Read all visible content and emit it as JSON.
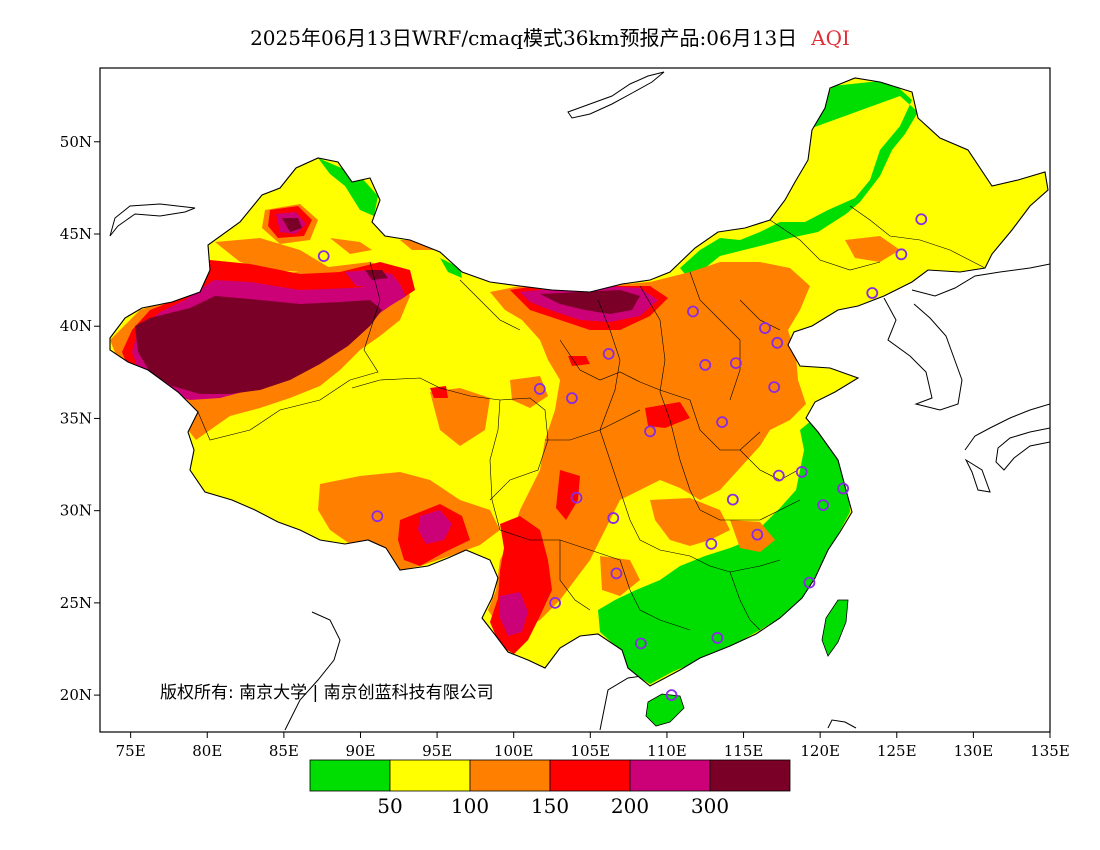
{
  "title": {
    "main": "2025年06月13日WRF/cmaq模式36km预报产品:06月13日",
    "variable": "AQI"
  },
  "map": {
    "lon_range": [
      73,
      135
    ],
    "lat_range": [
      18,
      54
    ],
    "x_ticks": [
      "75E",
      "80E",
      "85E",
      "90E",
      "95E",
      "100E",
      "105E",
      "110E",
      "115E",
      "120E",
      "125E",
      "130E",
      "135E"
    ],
    "x_tick_values": [
      75,
      80,
      85,
      90,
      95,
      100,
      105,
      110,
      115,
      120,
      125,
      130,
      135
    ],
    "y_ticks": [
      "50N",
      "45N",
      "40N",
      "35N",
      "30N",
      "25N",
      "20N"
    ],
    "y_tick_values": [
      50,
      45,
      40,
      35,
      30,
      25,
      20
    ],
    "copyright": "版权所有: 南京大学 | 南京创蓝科技有限公司"
  },
  "legend": {
    "colors": [
      "#00dd00",
      "#ffff00",
      "#ff8000",
      "#ff0000",
      "#cc0077",
      "#7a0027"
    ],
    "labels": [
      "50",
      "100",
      "150",
      "200",
      "300"
    ]
  },
  "stations": [
    [
      87.6,
      43.8
    ],
    [
      91.1,
      29.7
    ],
    [
      101.7,
      36.6
    ],
    [
      103.8,
      36.1
    ],
    [
      106.2,
      38.5
    ],
    [
      111.7,
      40.8
    ],
    [
      112.5,
      37.9
    ],
    [
      114.5,
      38.0
    ],
    [
      116.4,
      39.9
    ],
    [
      117.2,
      39.1
    ],
    [
      123.4,
      41.8
    ],
    [
      125.3,
      43.9
    ],
    [
      126.6,
      45.8
    ],
    [
      117.0,
      36.7
    ],
    [
      113.6,
      34.8
    ],
    [
      108.9,
      34.3
    ],
    [
      104.1,
      30.7
    ],
    [
      106.5,
      29.6
    ],
    [
      114.3,
      30.6
    ],
    [
      117.3,
      31.9
    ],
    [
      118.8,
      32.1
    ],
    [
      121.5,
      31.2
    ],
    [
      120.2,
      30.3
    ],
    [
      112.9,
      28.2
    ],
    [
      115.9,
      28.7
    ],
    [
      119.3,
      26.1
    ],
    [
      106.7,
      26.6
    ],
    [
      102.7,
      25.0
    ],
    [
      108.3,
      22.8
    ],
    [
      113.3,
      23.1
    ],
    [
      110.3,
      20.0
    ]
  ]
}
